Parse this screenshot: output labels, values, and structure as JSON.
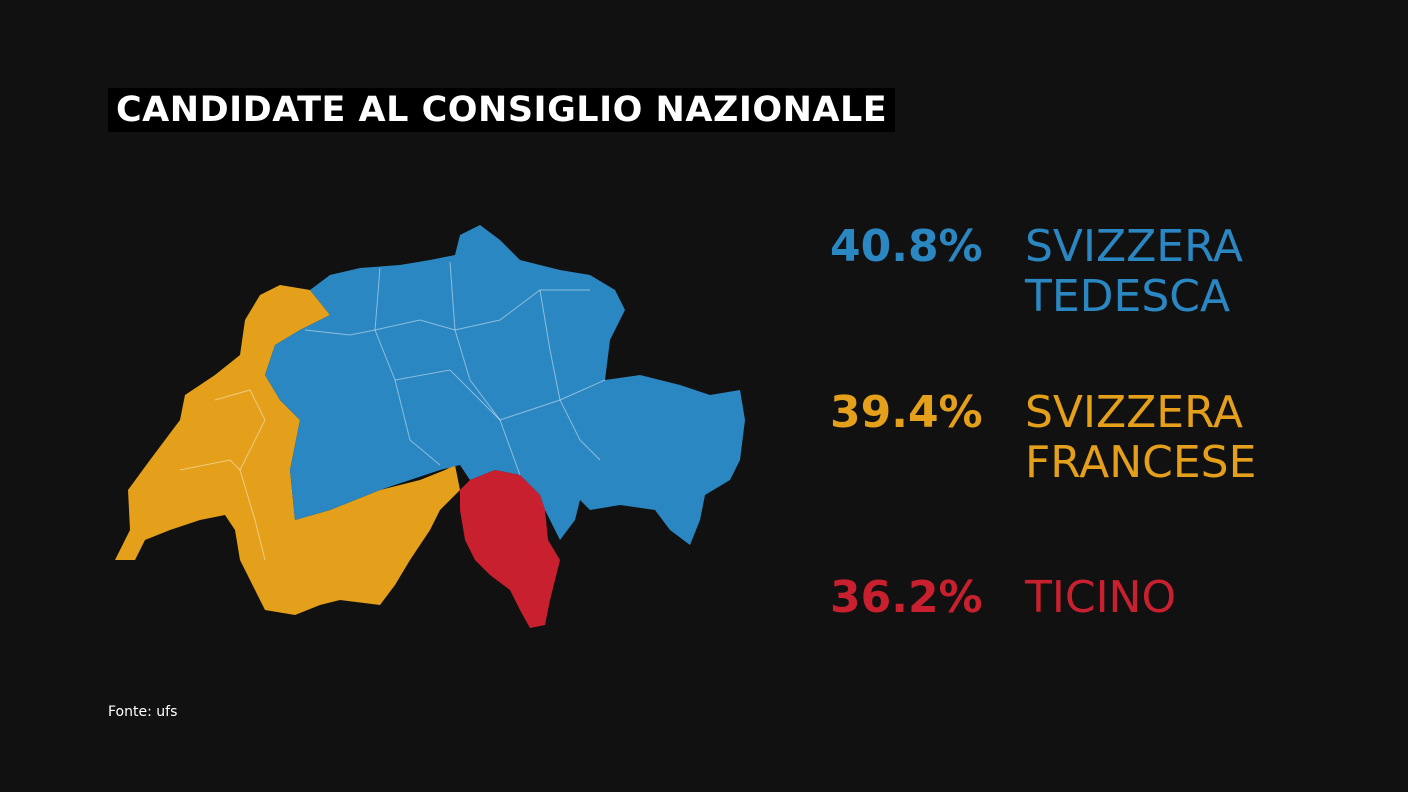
{
  "title": "CANDIDATE AL CONSIGLIO NAZIONALE",
  "regions": [
    {
      "share": "40.8%",
      "name": "SVIZZERA TEDESCA",
      "color": "#2b87c2"
    },
    {
      "share": "39.4%",
      "name": "SVIZZERA FRANCESE",
      "color": "#e4a01a"
    },
    {
      "share": "36.2%",
      "name": "TICINO",
      "color": "#c9202f"
    }
  ],
  "source": "Fonte: ufs"
}
